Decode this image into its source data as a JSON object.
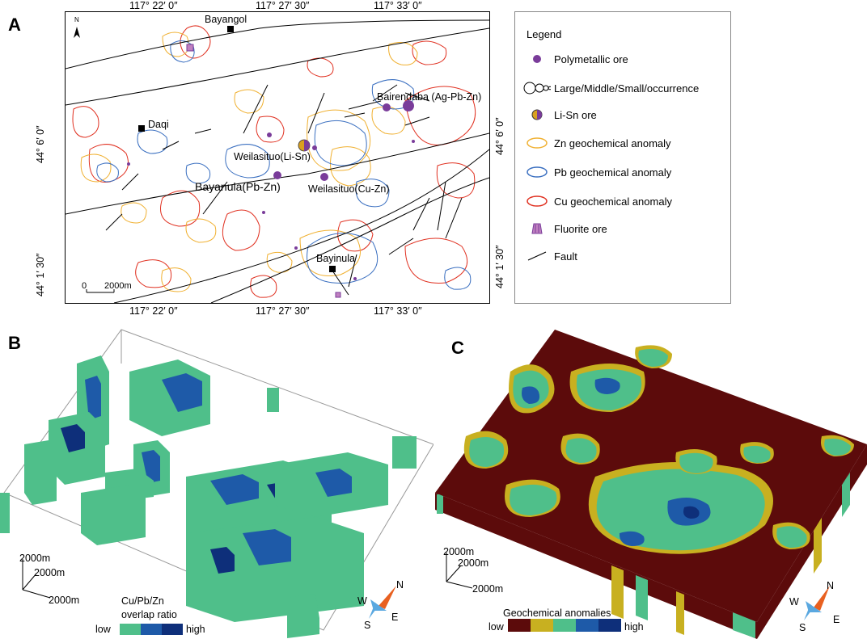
{
  "panels": {
    "a": "A",
    "b": "B",
    "c": "C"
  },
  "map": {
    "top_ticks": [
      "117° 22′ 0″",
      "117° 27′ 30″",
      "117° 33′ 0″"
    ],
    "bottom_ticks": [
      "117° 22′ 0″",
      "117° 27′ 30″",
      "117° 33′ 0″"
    ],
    "left_ticks": [
      "44° 6′ 0″",
      "44° 1′ 30″"
    ],
    "right_ticks": [
      "44° 6′ 0″",
      "44° 1′ 30″"
    ],
    "north": "N",
    "scale_zero": "0",
    "scale_value": "2000m",
    "places": {
      "bayangol": "Bayangol",
      "daqi": "Daqi",
      "bayinula": "Bayinula",
      "bairendaba": "Bairendaba (Ag-Pb-Zn)",
      "weilasituo_lisn": "Weilasituo(Li-Sn)",
      "bayanula": "Bayanula(Pb-Zn)",
      "weilasituo_cuzn": "Weilasituo(Cu-Zn)"
    }
  },
  "legend": {
    "title": "Legend",
    "items": [
      {
        "label": "Polymetallic ore",
        "icon": "purple-dot-icon"
      },
      {
        "label": "Large/Middle/Small/occurrence",
        "icon": "size-circles-icon"
      },
      {
        "label": "Li-Sn ore",
        "icon": "half-circle-icon"
      },
      {
        "label": "Zn geochemical anomaly",
        "icon": "zn-ellipse-icon"
      },
      {
        "label": "Pb geochemical anomaly",
        "icon": "pb-ellipse-icon"
      },
      {
        "label": "Cu geochemical anomaly",
        "icon": "cu-ellipse-icon"
      },
      {
        "label": "Fluorite ore",
        "icon": "fluorite-icon"
      },
      {
        "label": "Fault",
        "icon": "fault-line-icon"
      }
    ]
  },
  "colors": {
    "zn": "#f0b030",
    "pb": "#3a6fc0",
    "cu": "#e03020",
    "polymetallic": "#7a3c9a",
    "green": "#4fbf8a",
    "darkblue": "#0e2f7a",
    "midblue": "#1e5aa8",
    "maroon": "#5c0b0b",
    "olive": "#c8b020"
  },
  "panel_b": {
    "axis_z": "2000m",
    "axis_y": "2000m",
    "axis_x": "2000m",
    "colorbar_title_1": "Cu/Pb/Zn",
    "colorbar_title_2": "overlap ratio",
    "low": "low",
    "high": "high",
    "compass": {
      "n": "N",
      "e": "E",
      "s": "S",
      "w": "W"
    }
  },
  "panel_c": {
    "axis_z": "2000m",
    "axis_y": "2000m",
    "axis_x": "2000m",
    "colorbar_title": "Geochemical anomalies",
    "low": "low",
    "high": "high",
    "compass": {
      "n": "N",
      "e": "E",
      "s": "S",
      "w": "W"
    }
  }
}
